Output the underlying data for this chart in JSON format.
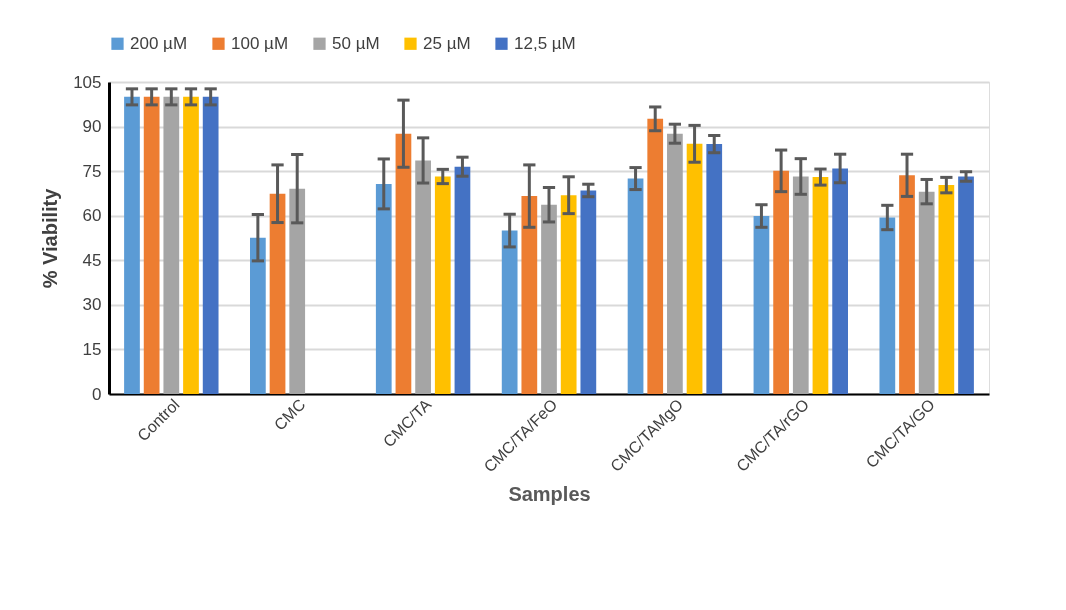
{
  "chart_data": {
    "type": "bar",
    "xlabel": "Samples",
    "ylabel": "% Viability",
    "categories": [
      "Control",
      "CMC",
      "CMC/TA",
      "CMC/TA/FeO",
      "CMC/TAMgO",
      "CMC/TA/rGO",
      "CMC/TA/GO"
    ],
    "ylim": [
      0,
      105
    ],
    "yticks": [
      0,
      15,
      30,
      45,
      60,
      75,
      90,
      105
    ],
    "grid": "y",
    "legend": "top",
    "series": [
      {
        "name": "200 µM",
        "color": "#5b9bd5",
        "values": [
          100,
          52.6,
          70.7,
          55.0,
          72.5,
          59.9,
          59.4
        ],
        "errors": [
          2.7,
          7.8,
          8.4,
          5.5,
          3.7,
          3.8,
          4.1
        ]
      },
      {
        "name": "100 µM",
        "color": "#ed7d31",
        "values": [
          100,
          67.4,
          87.6,
          66.6,
          92.6,
          75.1,
          73.6
        ],
        "errors": [
          2.7,
          9.7,
          11.3,
          10.5,
          4.0,
          7.0,
          7.1
        ]
      },
      {
        "name": "50 µM",
        "color": "#a5a5a5",
        "values": [
          100,
          69.1,
          78.6,
          63.7,
          87.6,
          73.2,
          68.1
        ],
        "errors": [
          2.7,
          11.5,
          7.6,
          5.8,
          3.2,
          6.0,
          4.1
        ]
      },
      {
        "name": "25 µM",
        "color": "#ffc000",
        "values": [
          100,
          null,
          73.2,
          66.9,
          84.2,
          73.0,
          70.3
        ],
        "errors": [
          2.7,
          null,
          2.4,
          6.2,
          6.2,
          2.7,
          2.6
        ]
      },
      {
        "name": "12,5 µM",
        "color": "#4472c4",
        "values": [
          100,
          null,
          76.5,
          68.5,
          84.1,
          75.9,
          73.2
        ],
        "errors": [
          2.7,
          null,
          3.2,
          2.1,
          2.9,
          4.8,
          1.6
        ]
      }
    ]
  }
}
